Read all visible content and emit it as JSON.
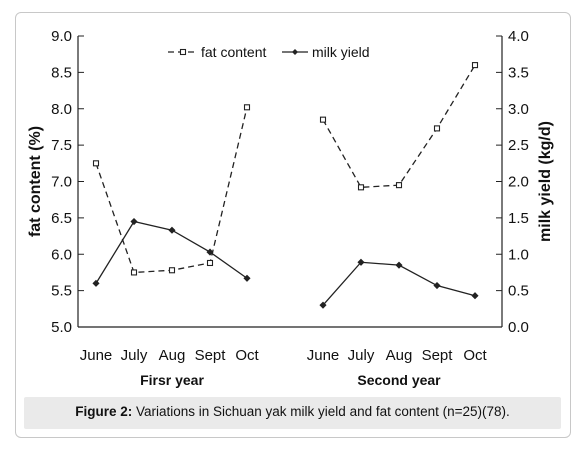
{
  "chart_data": {
    "type": "line",
    "categories": [
      "June",
      "July",
      "Aug",
      "Sept",
      "Oct",
      "June",
      "July",
      "Aug",
      "Sept",
      "Oct"
    ],
    "groups": [
      {
        "label": "Firsr year",
        "categories": [
          "June",
          "July",
          "Aug",
          "Sept",
          "Oct"
        ]
      },
      {
        "label": "Second year",
        "categories": [
          "June",
          "July",
          "Aug",
          "Sept",
          "Oct"
        ]
      }
    ],
    "series": [
      {
        "name": "fat content",
        "axis": "left",
        "style": "dashed",
        "marker": "open-square",
        "segments": [
          [
            7.25,
            5.75,
            5.78,
            5.88,
            8.02
          ],
          [
            7.85,
            6.92,
            6.95,
            7.73,
            8.6
          ]
        ]
      },
      {
        "name": "milk yield",
        "axis": "right",
        "style": "solid",
        "marker": "filled-diamond",
        "segments": [
          [
            0.6,
            1.45,
            1.33,
            1.03,
            0.67
          ],
          [
            0.3,
            0.89,
            0.85,
            0.57,
            0.43
          ]
        ]
      }
    ],
    "ylabel_left": "fat content (%)",
    "ylabel_right": "milk yield (kg/d)",
    "ylim_left": [
      5.0,
      9.0
    ],
    "ylim_right": [
      0.0,
      4.0
    ],
    "yticks_left": [
      "5.0",
      "5.5",
      "6.0",
      "6.5",
      "7.0",
      "7.5",
      "8.0",
      "8.5",
      "9.0"
    ],
    "yticks_right": [
      "0.0",
      "0.5",
      "1.0",
      "1.5",
      "2.0",
      "2.5",
      "3.0",
      "3.5",
      "4.0"
    ],
    "grid": false,
    "legend_position": "top-center"
  },
  "caption": {
    "bold": "Figure 2:",
    "text": " Variations in Sichuan yak milk yield and fat content (n=25)(78)."
  },
  "colors": {
    "line": "#222222",
    "caption_background": "#eaeaea"
  }
}
